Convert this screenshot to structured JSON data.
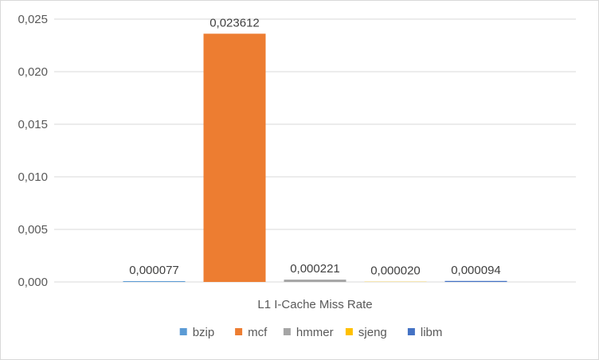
{
  "chart_data": {
    "type": "bar",
    "title": "",
    "xlabel": "",
    "ylabel": "",
    "categories": [
      "L1 I-Cache Miss Rate"
    ],
    "series": [
      {
        "name": "bzip",
        "values": [
          7.7e-05
        ],
        "label": "0,000077",
        "color": "#5b9bd5"
      },
      {
        "name": "mcf",
        "values": [
          0.023612
        ],
        "label": "0,023612",
        "color": "#ed7d31"
      },
      {
        "name": "hmmer",
        "values": [
          0.000221
        ],
        "label": "0,000221",
        "color": "#a5a5a5"
      },
      {
        "name": "sjeng",
        "values": [
          2e-05
        ],
        "label": "0,000020",
        "color": "#ffc000"
      },
      {
        "name": "libm",
        "values": [
          9.4e-05
        ],
        "label": "0,000094",
        "color": "#4472c4"
      }
    ],
    "ylim": [
      0,
      0.025
    ],
    "yticks": [
      0,
      0.005,
      0.01,
      0.015,
      0.02,
      0.025
    ],
    "ytick_labels": [
      "0,000",
      "0,005",
      "0,010",
      "0,015",
      "0,020",
      "0,025"
    ],
    "grid": true,
    "legend_position": "bottom"
  }
}
